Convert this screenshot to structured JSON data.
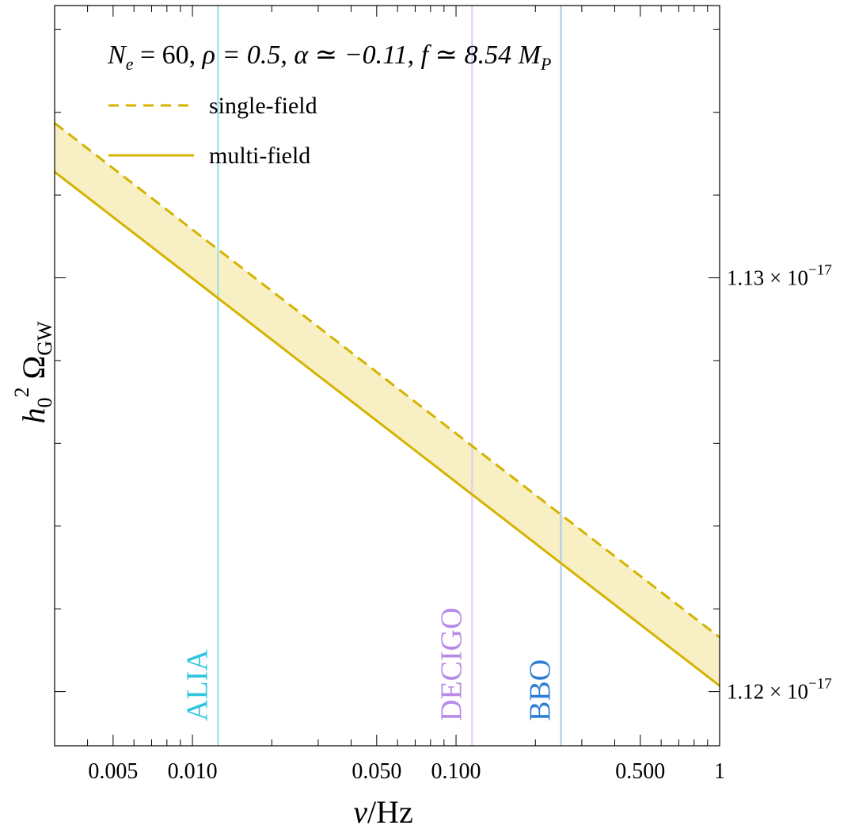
{
  "chart_data": {
    "type": "line",
    "xscale": "log",
    "xlim": [
      0.003,
      1.0
    ],
    "ylim": [
      1.11869e-17,
      1.13658e-17
    ],
    "xlabel": {
      "main": "ν/Hz"
    },
    "ylabel": {
      "base": "h",
      "sub": "0",
      "sup": "2",
      "omega": "Ω",
      "omega_sub": "GW"
    },
    "annotation": "N_e = 60,  ρ  = 0.5,  α ≃ −0.11,  f ≃ 8.54 M_P",
    "annotation_parts": {
      "ne_symbol": "N",
      "ne_sub": "e",
      "ne_rest": " = 60,  ",
      "rho": "ρ  = 0.5,  ",
      "alpha": "α ≃ −0.11,  ",
      "f": "f ≃ 8.54 ",
      "mp_symbol": "M",
      "mp_sub": "P"
    },
    "x_tick_labels": [
      {
        "value": 0.005,
        "label": "0.005"
      },
      {
        "value": 0.01,
        "label": "0.010"
      },
      {
        "value": 0.05,
        "label": "0.050"
      },
      {
        "value": 0.1,
        "label": "0.100"
      },
      {
        "value": 0.5,
        "label": "0.500"
      },
      {
        "value": 1.0,
        "label": "1"
      }
    ],
    "y_tick_labels": [
      {
        "value": 1.13e-17,
        "mantissa": "1.13",
        "times": "×",
        "base": "10",
        "exponent": "−17"
      },
      {
        "value": 1.12e-17,
        "mantissa": "1.12",
        "times": "×",
        "base": "10",
        "exponent": "−17"
      }
    ],
    "series": [
      {
        "name": "single-field",
        "style": "dashed",
        "color": "#d4b300",
        "x": [
          0.003,
          1.0
        ],
        "y": [
          1.13374e-17,
          1.12131e-17
        ]
      },
      {
        "name": "multi-field",
        "style": "solid",
        "color": "#d4b300",
        "x": [
          0.003,
          1.0
        ],
        "y": [
          1.13256e-17,
          1.12014e-17
        ]
      }
    ],
    "band_fill_color": "#f8efc4",
    "legend": {
      "placement": "top-left",
      "entries": [
        {
          "label": "single-field",
          "style": "dashed"
        },
        {
          "label": "multi-field",
          "style": "solid"
        }
      ]
    },
    "detectors": [
      {
        "name": "ALIA",
        "frequency": 0.0125,
        "color": "#8fe0ec",
        "label_color": "#2ec5e0"
      },
      {
        "name": "DECIGO",
        "frequency": 0.115,
        "color": "#e2c8f2",
        "label_color": "#b88ae8"
      },
      {
        "name": "BBO",
        "frequency": 0.25,
        "color": "#a9c9ee",
        "label_color": "#2f7ed6"
      }
    ]
  }
}
